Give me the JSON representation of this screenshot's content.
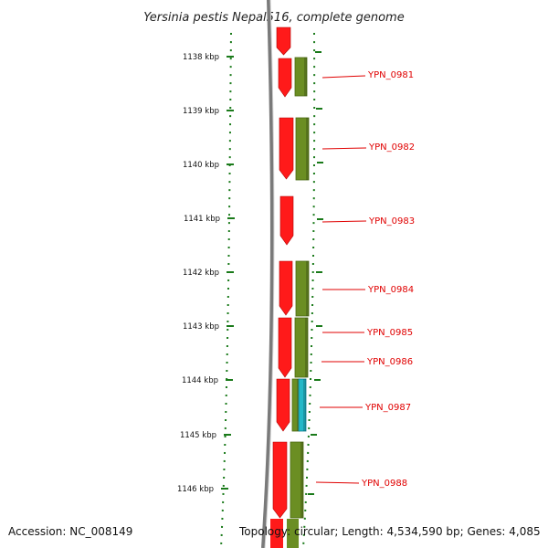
{
  "title": "Yersinia pestis Nepal516, complete genome",
  "footer": {
    "accession": "Accession: NC_008149",
    "summary": "Topology: circular; Length: 4,534,590 bp; Genes: 4,085"
  },
  "colors": {
    "forward_cds": "#ff1a1a",
    "gene_feature": "#6b8e23",
    "other_feature": "#22b8c8",
    "backbone": "#7a7a7a",
    "tick": "#1a7a1a",
    "label": "#e00000"
  },
  "ticks": [
    "1138 kbp",
    "1139 kbp",
    "1140 kbp",
    "1141 kbp",
    "1142 kbp",
    "1143 kbp",
    "1144 kbp",
    "1145 kbp",
    "1146 kbp"
  ],
  "genes": [
    {
      "label": "YPN_0981"
    },
    {
      "label": "YPN_0982"
    },
    {
      "label": "YPN_0983"
    },
    {
      "label": "YPN_0984"
    },
    {
      "label": "YPN_0985"
    },
    {
      "label": "YPN_0986"
    },
    {
      "label": "YPN_0987"
    },
    {
      "label": "YPN_0988"
    }
  ]
}
